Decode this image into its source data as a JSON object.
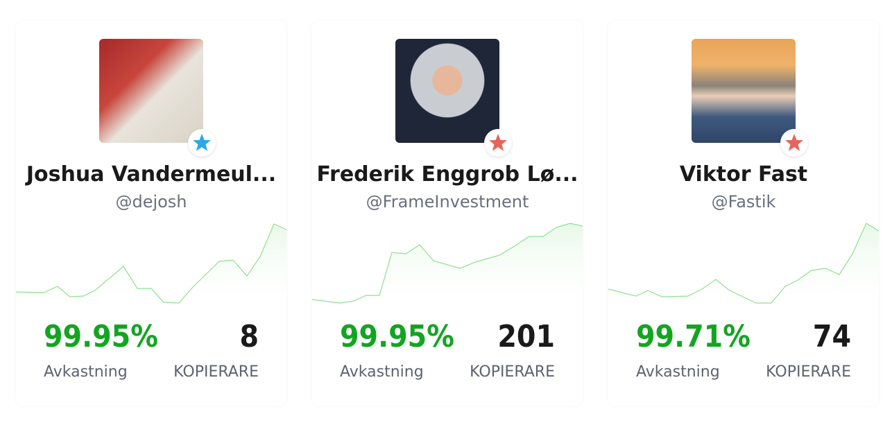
{
  "cards": [
    {
      "name": "Joshua Vandermeul...",
      "handle": "@dejosh",
      "return": "99.95%",
      "return_label": "Avkastning",
      "copiers": "8",
      "copiers_label": "KOPIERARE"
    },
    {
      "name": "Frederik Enggrob Lø...",
      "handle": "@FrameInvestment",
      "return": "99.95%",
      "return_label": "Avkastning",
      "copiers": "201",
      "copiers_label": "KOPIERARE"
    },
    {
      "name": "Viktor Fast",
      "handle": "@Fastik",
      "return": "99.71%",
      "return_label": "Avkastning",
      "copiers": "74",
      "copiers_label": "KOPIERARE"
    }
  ]
}
